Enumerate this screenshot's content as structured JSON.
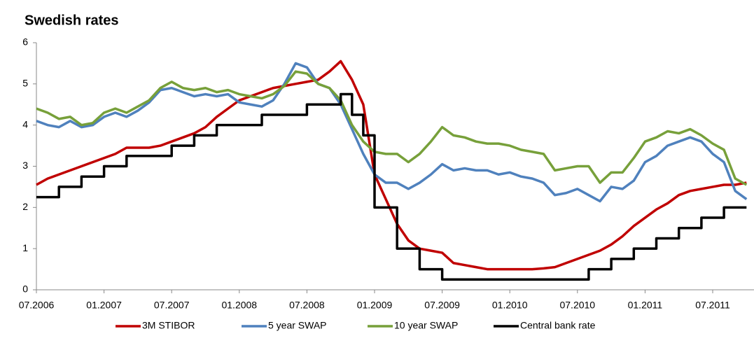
{
  "chart_data": {
    "type": "line",
    "title": "Swedish rates",
    "categories": [
      "07.2006",
      null,
      null,
      null,
      null,
      null,
      "01.2007",
      null,
      null,
      null,
      null,
      null,
      "07.2007",
      null,
      null,
      null,
      null,
      null,
      "01.2008",
      null,
      null,
      null,
      null,
      null,
      "07.2008",
      null,
      null,
      null,
      null,
      null,
      "01.2009",
      null,
      null,
      null,
      null,
      null,
      "07.2009",
      null,
      null,
      null,
      null,
      null,
      "01.2010",
      null,
      null,
      null,
      null,
      null,
      "07.2010",
      null,
      null,
      null,
      null,
      null,
      "01.2011",
      null,
      null,
      null,
      null,
      null,
      "07.2011",
      null,
      null,
      null
    ],
    "series": [
      {
        "name": "3M STIBOR",
        "color": "#c00000",
        "values": [
          2.55,
          2.7,
          2.8,
          2.9,
          3.0,
          3.1,
          3.2,
          3.3,
          3.45,
          3.45,
          3.45,
          3.5,
          3.6,
          3.7,
          3.8,
          3.95,
          4.2,
          4.4,
          4.6,
          4.7,
          4.8,
          4.9,
          4.95,
          5.0,
          5.05,
          5.1,
          5.3,
          5.55,
          5.1,
          4.5,
          2.8,
          2.2,
          1.6,
          1.2,
          1.0,
          0.95,
          0.9,
          0.65,
          0.6,
          0.55,
          0.5,
          0.5,
          0.5,
          0.5,
          0.5,
          0.52,
          0.55,
          0.65,
          0.75,
          0.85,
          0.95,
          1.1,
          1.3,
          1.55,
          1.75,
          1.95,
          2.1,
          2.3,
          2.4,
          2.45,
          2.5,
          2.55,
          2.55,
          2.6
        ]
      },
      {
        "name": "5 year SWAP",
        "color": "#4f81bd",
        "values": [
          4.1,
          4.0,
          3.95,
          4.1,
          3.95,
          4.0,
          4.2,
          4.3,
          4.2,
          4.35,
          4.55,
          4.85,
          4.9,
          4.8,
          4.7,
          4.75,
          4.7,
          4.75,
          4.55,
          4.5,
          4.45,
          4.6,
          5.0,
          5.5,
          5.4,
          5.0,
          4.9,
          4.5,
          3.9,
          3.3,
          2.8,
          2.6,
          2.6,
          2.45,
          2.6,
          2.8,
          3.05,
          2.9,
          2.95,
          2.9,
          2.9,
          2.8,
          2.85,
          2.75,
          2.7,
          2.6,
          2.3,
          2.35,
          2.45,
          2.3,
          2.15,
          2.5,
          2.45,
          2.65,
          3.1,
          3.25,
          3.5,
          3.6,
          3.7,
          3.6,
          3.3,
          3.1,
          2.4,
          2.2
        ]
      },
      {
        "name": "10 year SWAP",
        "color": "#77a03a",
        "values": [
          4.4,
          4.3,
          4.15,
          4.2,
          4.0,
          4.05,
          4.3,
          4.4,
          4.3,
          4.45,
          4.6,
          4.9,
          5.05,
          4.9,
          4.85,
          4.9,
          4.8,
          4.85,
          4.75,
          4.7,
          4.65,
          4.75,
          4.95,
          5.3,
          5.25,
          5.0,
          4.9,
          4.6,
          4.0,
          3.6,
          3.35,
          3.3,
          3.3,
          3.1,
          3.3,
          3.6,
          3.95,
          3.75,
          3.7,
          3.6,
          3.55,
          3.55,
          3.5,
          3.4,
          3.35,
          3.3,
          2.9,
          2.95,
          3.0,
          3.0,
          2.6,
          2.85,
          2.85,
          3.2,
          3.6,
          3.7,
          3.85,
          3.8,
          3.9,
          3.75,
          3.55,
          3.4,
          2.7,
          2.55
        ]
      },
      {
        "name": "Central bank rate",
        "color": "#000000",
        "step": true,
        "values": [
          2.25,
          2.25,
          2.5,
          2.5,
          2.75,
          2.75,
          3,
          3,
          3.25,
          3.25,
          3.25,
          3.25,
          3.5,
          3.5,
          3.75,
          3.75,
          4,
          4,
          4,
          4,
          4.25,
          4.25,
          4.25,
          4.25,
          4.5,
          4.5,
          4.5,
          4.75,
          4.25,
          3.75,
          2,
          2,
          1,
          1,
          0.5,
          0.5,
          0.25,
          0.25,
          0.25,
          0.25,
          0.25,
          0.25,
          0.25,
          0.25,
          0.25,
          0.25,
          0.25,
          0.25,
          0.25,
          0.5,
          0.5,
          0.75,
          0.75,
          1,
          1,
          1.25,
          1.25,
          1.5,
          1.5,
          1.75,
          1.75,
          2,
          2,
          2
        ]
      }
    ],
    "ylim": [
      0,
      6
    ],
    "yticks": [
      0,
      1,
      2,
      3,
      4,
      5,
      6
    ],
    "grid": false,
    "legend": "bottom"
  }
}
